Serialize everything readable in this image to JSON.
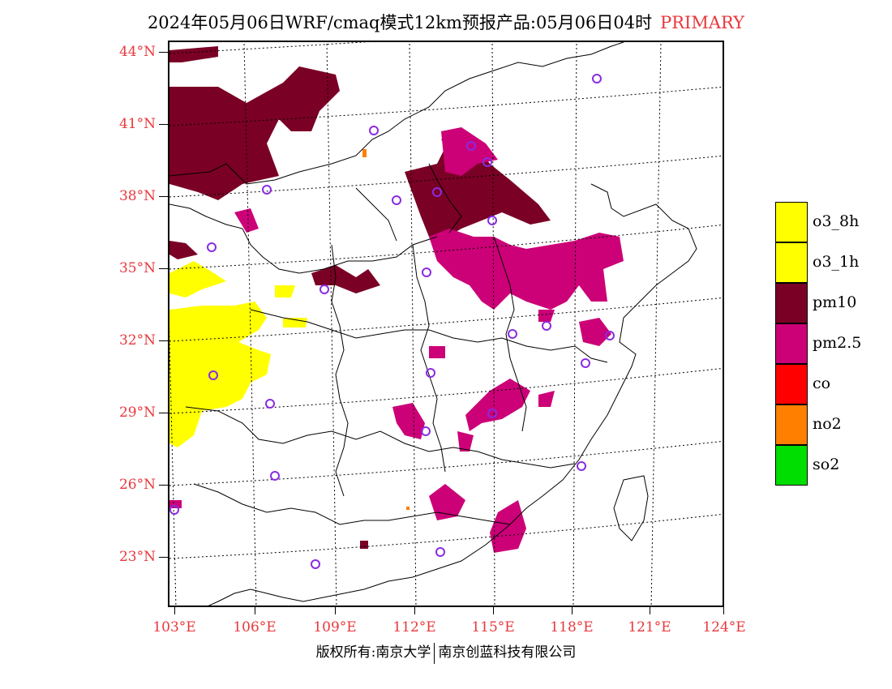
{
  "header": {
    "title": "2024年05月06日WRF/cmaq模式12km预报产品:05月06日04时",
    "tag": "PRIMARY"
  },
  "axes": {
    "lat_labels": [
      "44°N",
      "41°N",
      "38°N",
      "35°N",
      "32°N",
      "29°N",
      "26°N",
      "23°N"
    ],
    "lon_labels": [
      "103°E",
      "106°E",
      "109°E",
      "112°E",
      "115°E",
      "118°E",
      "121°E",
      "124°E"
    ]
  },
  "legend": {
    "items": [
      {
        "label": "o3_8h",
        "color": "#ffff00"
      },
      {
        "label": "o3_1h",
        "color": "#ffff00"
      },
      {
        "label": "pm10",
        "color": "#7a0026"
      },
      {
        "label": "pm2.5",
        "color": "#cc0077"
      },
      {
        "label": "co",
        "color": "#ff0000"
      },
      {
        "label": "no2",
        "color": "#ff7f00"
      },
      {
        "label": "so2",
        "color": "#00dd00"
      }
    ]
  },
  "footer": {
    "left": "版权所有:南京大学",
    "right": "南京创蓝科技有限公司"
  },
  "colors": {
    "accent": "#e8383c",
    "station_marker": "#8a2be2"
  }
}
